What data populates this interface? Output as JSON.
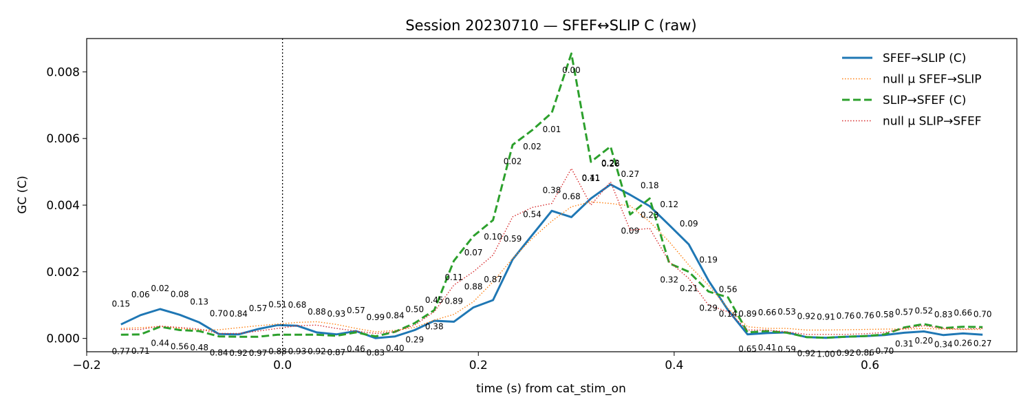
{
  "chart_data": {
    "type": "line",
    "title": "Session 20230710 — SFEF↔SLIP C (raw)",
    "xlabel": "time (s) from cat_stim_on",
    "ylabel": "GC (C)",
    "xlim": [
      -0.2,
      0.75
    ],
    "ylim": [
      -0.0004,
      0.009
    ],
    "xticks": [
      -0.2,
      0.0,
      0.2,
      0.4,
      0.6
    ],
    "xtick_labels": [
      "−0.2",
      "0.0",
      "0.2",
      "0.4",
      "0.6"
    ],
    "yticks": [
      0.0,
      0.002,
      0.004,
      0.006,
      0.008
    ],
    "ytick_labels": [
      "0.000",
      "0.002",
      "0.004",
      "0.006",
      "0.008"
    ],
    "vline_x": 0.0,
    "grid": false,
    "legend_position": "top-right",
    "x": [
      -0.165,
      -0.145,
      -0.125,
      -0.105,
      -0.085,
      -0.065,
      -0.045,
      -0.025,
      -0.005,
      0.015,
      0.035,
      0.055,
      0.075,
      0.095,
      0.115,
      0.135,
      0.155,
      0.175,
      0.195,
      0.215,
      0.235,
      0.255,
      0.275,
      0.295,
      0.315,
      0.335,
      0.355,
      0.375,
      0.395,
      0.415,
      0.435,
      0.455,
      0.475,
      0.495,
      0.515,
      0.535,
      0.555,
      0.575,
      0.595,
      0.615,
      0.635,
      0.655,
      0.675,
      0.695,
      0.715
    ],
    "series": [
      {
        "name": "SFEF→SLIP (C)",
        "color": "#1f77b4",
        "style": "solid",
        "values": [
          0.00042,
          0.0007,
          0.00088,
          0.00071,
          0.00048,
          0.00013,
          0.00012,
          0.00028,
          0.0004,
          0.00038,
          0.00018,
          0.00012,
          0.00022,
          1e-05,
          6e-05,
          0.00025,
          0.00053,
          0.0005,
          0.00093,
          0.00115,
          0.00237,
          0.0031,
          0.00383,
          0.00364,
          0.0042,
          0.00462,
          0.00431,
          0.00397,
          0.0034,
          0.00282,
          0.00174,
          0.00085,
          0.00012,
          0.00016,
          0.00018,
          4e-05,
          2e-05,
          5e-05,
          7e-05,
          0.0001,
          0.00017,
          0.00021,
          0.0001,
          0.00015,
          0.00011
        ],
        "labels_pos": "above",
        "labels": [
          "0.15",
          "0.06",
          "0.02",
          "0.08",
          "0.13",
          "0.70",
          "0.84",
          "0.57",
          "0.51",
          "0.68",
          "0.88",
          "0.93",
          "0.57",
          "0.99",
          "0.84",
          "0.50",
          "0.45",
          "0.89",
          "0.88",
          "0.87",
          "0.59",
          "0.54",
          "0.38",
          "0.68",
          "0.41",
          "0.26",
          "0.27",
          "0.18",
          "0.12",
          "0.09",
          "0.19",
          "0.56",
          "0.89",
          "0.66",
          "0.53",
          "0.92",
          "0.91",
          "0.76",
          "0.76",
          "0.58",
          "0.57",
          "0.52",
          "0.83",
          "0.66",
          "0.70"
        ]
      },
      {
        "name": "null μ SFEF→SLIP",
        "color": "#ff7f0e",
        "style": "dotted",
        "values": [
          0.0003,
          0.00032,
          0.00036,
          0.0003,
          0.00025,
          0.00026,
          0.00032,
          0.00038,
          0.00043,
          0.00048,
          0.0005,
          0.00042,
          0.0003,
          0.0002,
          0.00024,
          0.00033,
          0.00055,
          0.00072,
          0.0011,
          0.0017,
          0.0024,
          0.003,
          0.00352,
          0.00395,
          0.0041,
          0.00405,
          0.00398,
          0.0035,
          0.0029,
          0.0022,
          0.0016,
          0.0009,
          0.00035,
          0.0003,
          0.0003,
          0.00025,
          0.00025,
          0.00026,
          0.00027,
          0.00028,
          0.00028,
          0.0003,
          0.00028,
          0.00027,
          0.00027
        ]
      },
      {
        "name": "SLIP→SFEF (C)",
        "color": "#2ca02c",
        "style": "dashed",
        "values": [
          0.00011,
          0.00012,
          0.00035,
          0.00025,
          0.00022,
          6e-05,
          5e-05,
          5e-05,
          0.00011,
          0.00011,
          0.00011,
          8e-05,
          0.00018,
          6e-05,
          0.0002,
          0.00046,
          0.00085,
          0.00233,
          0.00307,
          0.00355,
          0.00581,
          0.00625,
          0.00677,
          0.00855,
          0.0053,
          0.00576,
          0.00372,
          0.0042,
          0.00225,
          0.002,
          0.00141,
          0.00123,
          0.00018,
          0.00022,
          0.00017,
          4e-05,
          2e-05,
          5e-05,
          7e-05,
          0.00012,
          0.00033,
          0.00043,
          0.00031,
          0.00035,
          0.00034
        ],
        "labels_pos": "below",
        "labels": [
          "0.77",
          "0.71",
          "0.44",
          "0.56",
          "0.48",
          "0.84",
          "0.92",
          "0.97",
          "0.88",
          "0.93",
          "0.92",
          "0.87",
          "0.46",
          "0.83",
          "0.40",
          "0.29",
          "0.38",
          "0.11",
          "0.07",
          "0.10",
          "0.02",
          "0.02",
          "0.01",
          "0.00",
          "0.11",
          "0.22",
          "0.09",
          "0.23",
          "0.32",
          "0.21",
          "0.29",
          "0.14",
          "0.65",
          "0.41",
          "0.59",
          "0.92",
          "1.00",
          "0.92",
          "0.86",
          "0.70",
          "0.31",
          "0.20",
          "0.34",
          "0.26",
          "0.27"
        ]
      },
      {
        "name": "null μ SLIP→SFEF",
        "color": "#d62728",
        "style": "dotted",
        "values": [
          0.00027,
          0.00027,
          0.00037,
          0.00033,
          0.00028,
          0.00015,
          0.00015,
          0.00022,
          0.0003,
          0.00038,
          0.0004,
          0.0003,
          0.00022,
          0.00015,
          0.0002,
          0.0004,
          0.0008,
          0.0016,
          0.002,
          0.0025,
          0.00365,
          0.00393,
          0.00405,
          0.0051,
          0.004,
          0.0047,
          0.00325,
          0.0033,
          0.0023,
          0.0018,
          0.001,
          0.0008,
          0.00025,
          0.00025,
          0.0002,
          0.00012,
          0.00012,
          0.00012,
          0.00014,
          0.00018,
          0.0003,
          0.00038,
          0.0003,
          0.00028,
          0.0003
        ]
      }
    ]
  }
}
